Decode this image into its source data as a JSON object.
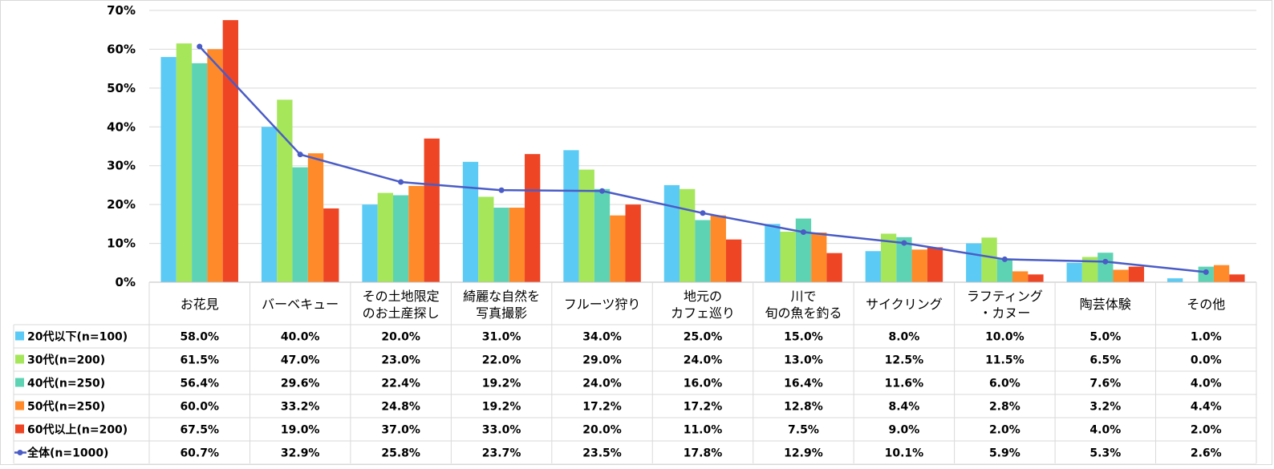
{
  "chart_data": {
    "type": "bar",
    "ylim": [
      0,
      70
    ],
    "y_ticks": [
      "0%",
      "10%",
      "20%",
      "30%",
      "40%",
      "50%",
      "60%",
      "70%"
    ],
    "categories": [
      [
        "お花見"
      ],
      [
        "バーベキュー"
      ],
      [
        "その土地限定",
        "のお土産探し"
      ],
      [
        "綺麗な自然を",
        "写真撮影"
      ],
      [
        "フルーツ狩り"
      ],
      [
        "地元の",
        "カフェ巡り"
      ],
      [
        "川で",
        "旬の魚を釣る"
      ],
      [
        "サイクリング"
      ],
      [
        "ラフティング",
        "・カヌー"
      ],
      [
        "陶芸体験"
      ],
      [
        "その他"
      ]
    ],
    "series": [
      {
        "name": "20代以下(n=100)",
        "color": "#5BCBF5",
        "values": [
          58.0,
          40.0,
          20.0,
          31.0,
          34.0,
          25.0,
          15.0,
          8.0,
          10.0,
          5.0,
          1.0
        ]
      },
      {
        "name": "30代(n=200)",
        "color": "#A5E65A",
        "values": [
          61.5,
          47.0,
          23.0,
          22.0,
          29.0,
          24.0,
          13.0,
          12.5,
          11.5,
          6.5,
          0.0
        ]
      },
      {
        "name": "40代(n=250)",
        "color": "#5ED3B4",
        "values": [
          56.4,
          29.6,
          22.4,
          19.2,
          24.0,
          16.0,
          16.4,
          11.6,
          6.0,
          7.6,
          4.0
        ]
      },
      {
        "name": "50代(n=250)",
        "color": "#FF8A2A",
        "values": [
          60.0,
          33.2,
          24.8,
          19.2,
          17.2,
          17.2,
          12.8,
          8.4,
          2.8,
          3.2,
          4.4
        ]
      },
      {
        "name": "60代以上(n=200)",
        "color": "#EE4524",
        "values": [
          67.5,
          19.0,
          37.0,
          33.0,
          20.0,
          11.0,
          7.5,
          9.0,
          2.0,
          4.0,
          2.0
        ]
      }
    ],
    "line_series": {
      "name": "全体(n=1000)",
      "color": "#4A5CC6",
      "values": [
        60.7,
        32.9,
        25.8,
        23.7,
        23.5,
        17.8,
        12.9,
        10.1,
        5.9,
        5.3,
        2.6
      ]
    },
    "table": true,
    "grid": true
  }
}
